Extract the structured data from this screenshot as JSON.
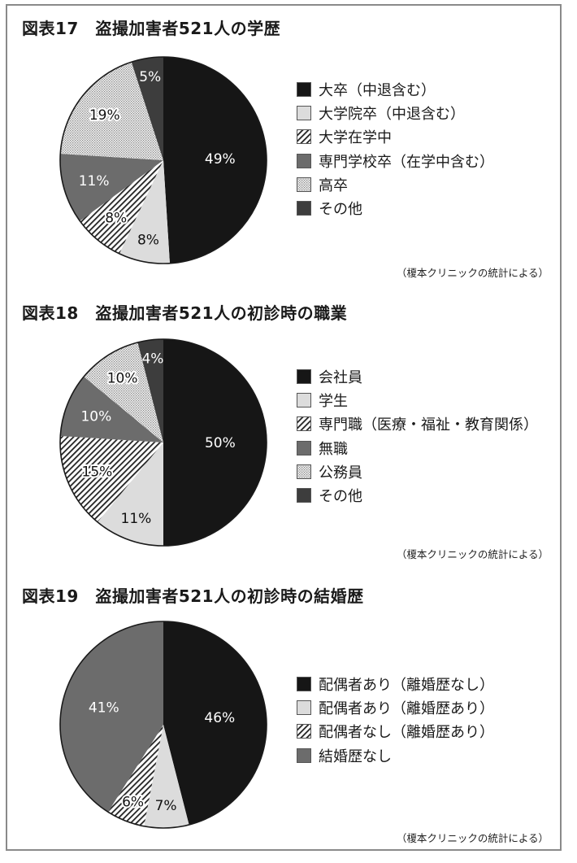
{
  "colors": {
    "black": "#161616",
    "light_gray": "#dcdcdc",
    "mid_gray": "#6c6c6c",
    "dark_gray": "#3d3d3d",
    "dots_bg": "#f4f4f4",
    "hatch_bg": "#ffffff",
    "border": "#8a8a8a"
  },
  "figures": [
    {
      "title": "図表17　盗撮加害者521人の学歴",
      "source": "（榎本クリニックの統計による）",
      "legend": [
        {
          "label": "大卒（中退含む）",
          "fill": "black"
        },
        {
          "label": "大学院卒（中退含む）",
          "fill": "light"
        },
        {
          "label": "大学在学中",
          "fill": "hatch"
        },
        {
          "label": "専門学校卒（在学中含む）",
          "fill": "mid"
        },
        {
          "label": "高卒",
          "fill": "dots"
        },
        {
          "label": "その他",
          "fill": "dark"
        }
      ]
    },
    {
      "title": "図表18　盗撮加害者521人の初診時の職業",
      "source": "（榎本クリニックの統計による）",
      "legend": [
        {
          "label": "会社員",
          "fill": "black"
        },
        {
          "label": "学生",
          "fill": "light"
        },
        {
          "label": "専門職（医療・福祉・教育関係）",
          "fill": "hatch"
        },
        {
          "label": "無職",
          "fill": "mid"
        },
        {
          "label": "公務員",
          "fill": "dots"
        },
        {
          "label": "その他",
          "fill": "dark"
        }
      ]
    },
    {
      "title": "図表19　盗撮加害者521人の初診時の結婚歴",
      "source": "（榎本クリニックの統計による）",
      "legend": [
        {
          "label": "配偶者あり（離婚歴なし）",
          "fill": "black"
        },
        {
          "label": "配偶者あり（離婚歴あり）",
          "fill": "light"
        },
        {
          "label": "配偶者なし（離婚歴あり）",
          "fill": "hatch"
        },
        {
          "label": "結婚歴なし",
          "fill": "mid"
        }
      ]
    }
  ],
  "chart_data": [
    {
      "type": "pie",
      "title": "図表17　盗撮加害者521人の学歴",
      "categories": [
        "大卒（中退含む）",
        "大学院卒（中退含む）",
        "大学在学中",
        "専門学校卒（在学中含む）",
        "高卒",
        "その他"
      ],
      "values": [
        49,
        8,
        8,
        11,
        19,
        5
      ],
      "labels": [
        "49%",
        "8%",
        "8%",
        "11%",
        "19%",
        "5%"
      ],
      "unit": "%",
      "start_angle": "12 o'clock, clockwise",
      "legend_position": "right",
      "annotation": "（榎本クリニックの統計による）"
    },
    {
      "type": "pie",
      "title": "図表18　盗撮加害者521人の初診時の職業",
      "categories": [
        "会社員",
        "学生",
        "専門職（医療・福祉・教育関係）",
        "無職",
        "公務員",
        "その他"
      ],
      "values": [
        50,
        11,
        15,
        10,
        10,
        4
      ],
      "labels": [
        "50%",
        "11%",
        "15%",
        "10%",
        "10%",
        "4%"
      ],
      "unit": "%",
      "start_angle": "12 o'clock, clockwise",
      "legend_position": "right",
      "annotation": "（榎本クリニックの統計による）"
    },
    {
      "type": "pie",
      "title": "図表19　盗撮加害者521人の初診時の結婚歴",
      "categories": [
        "配偶者あり（離婚歴なし）",
        "配偶者あり（離婚歴あり）",
        "配偶者なし（離婚歴あり）",
        "結婚歴なし"
      ],
      "values": [
        46,
        7,
        6,
        41
      ],
      "labels": [
        "46%",
        "7%",
        "6%",
        "41%"
      ],
      "unit": "%",
      "start_angle": "12 o'clock, clockwise",
      "legend_position": "right",
      "annotation": "（榎本クリニックの統計による）"
    }
  ]
}
